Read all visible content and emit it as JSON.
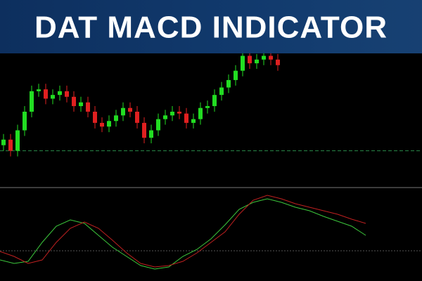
{
  "chart_data": [
    {
      "type": "candlestick",
      "title": "DAT MACD INDICATOR",
      "ylim": [
        0,
        100
      ],
      "level": 19,
      "up_color": "#22dd22",
      "down_color": "#e02020",
      "level_color": "#2a8a4a",
      "open": [
        22,
        25,
        19,
        30,
        40,
        51,
        52,
        47,
        49,
        51,
        48,
        43,
        45,
        40,
        34,
        32,
        35,
        38,
        42,
        40,
        34,
        26,
        30,
        36,
        38,
        40,
        39,
        34,
        36,
        42,
        43,
        49,
        53,
        57,
        62,
        70,
        66,
        68,
        70,
        68
      ],
      "high": [
        28,
        28,
        33,
        43,
        54,
        55,
        55,
        52,
        54,
        54,
        51,
        48,
        48,
        43,
        37,
        38,
        41,
        45,
        45,
        43,
        37,
        33,
        39,
        41,
        43,
        43,
        42,
        39,
        45,
        46,
        52,
        56,
        60,
        65,
        73,
        73,
        71,
        73,
        73,
        71
      ],
      "low": [
        19,
        16,
        16,
        27,
        37,
        48,
        44,
        44,
        46,
        45,
        40,
        40,
        37,
        31,
        29,
        29,
        32,
        35,
        37,
        31,
        23,
        23,
        27,
        33,
        35,
        36,
        31,
        31,
        33,
        39,
        40,
        46,
        50,
        54,
        59,
        63,
        63,
        65,
        65,
        62
      ],
      "close": [
        25,
        19,
        30,
        40,
        51,
        52,
        47,
        49,
        51,
        48,
        43,
        45,
        40,
        34,
        32,
        35,
        38,
        42,
        40,
        34,
        26,
        30,
        36,
        38,
        40,
        39,
        34,
        36,
        42,
        43,
        49,
        53,
        57,
        62,
        70,
        66,
        68,
        70,
        68,
        65
      ]
    },
    {
      "type": "line",
      "ylim": [
        -43,
        87
      ],
      "zero_line": true,
      "x": [
        0,
        20,
        40,
        60,
        80,
        100,
        120,
        140,
        160,
        180,
        200,
        220,
        240,
        260,
        280,
        300,
        320,
        340,
        360,
        380,
        400,
        420,
        440,
        460,
        480,
        500,
        520
      ],
      "xlim": [
        0,
        600
      ],
      "series": [
        {
          "color": "#3cc83c",
          "values": [
            -13,
            -18,
            -15,
            12,
            35,
            44,
            39,
            22,
            5,
            -8,
            -21,
            -26,
            -23,
            -8,
            2,
            17,
            37,
            59,
            69,
            74,
            69,
            62,
            57,
            49,
            42,
            35,
            22
          ]
        },
        {
          "color": "#c02020",
          "values": [
            -1,
            -8,
            -18,
            -13,
            12,
            32,
            41,
            32,
            15,
            -3,
            -18,
            -23,
            -21,
            -15,
            -3,
            12,
            27,
            52,
            72,
            79,
            74,
            67,
            62,
            57,
            52,
            45,
            39
          ]
        }
      ]
    }
  ]
}
